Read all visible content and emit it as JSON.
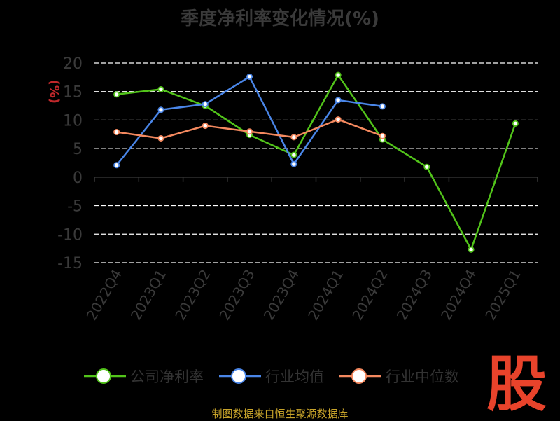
{
  "title": "季度净利率变化情况(%)",
  "source": "制图数据来自恒生聚源数据库",
  "logo_text": "股",
  "chart_data": {
    "type": "line",
    "title": "季度净利率变化情况(%)",
    "ylabel": "(%)",
    "ylim": [
      -15,
      20
    ],
    "yticks": [
      20,
      15,
      10,
      5,
      0,
      -5,
      -10,
      -15
    ],
    "grid": true,
    "legend_position": "bottom",
    "categories": [
      "2022Q4",
      "2023Q1",
      "2023Q2",
      "2023Q3",
      "2023Q4",
      "2024Q1",
      "2024Q2",
      "2024Q3",
      "2024Q4",
      "2025Q1"
    ],
    "series": [
      {
        "name": "公司净利率",
        "color": "#52c41a",
        "values": [
          14.5,
          15.4,
          12.5,
          7.4,
          3.9,
          17.9,
          6.6,
          1.8,
          -12.7,
          9.4
        ]
      },
      {
        "name": "行业均值",
        "color": "#4a86e8",
        "values": [
          2.1,
          11.8,
          12.8,
          17.6,
          2.3,
          13.5,
          12.4,
          null,
          null,
          null
        ]
      },
      {
        "name": "行业中位数",
        "color": "#f4895f",
        "values": [
          7.9,
          6.8,
          9.0,
          8.0,
          7.0,
          10.1,
          7.2,
          null,
          null,
          null
        ]
      }
    ]
  }
}
